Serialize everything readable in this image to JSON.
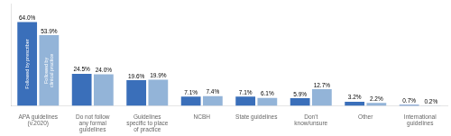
{
  "chart_data": {
    "type": "bar",
    "categories": [
      "APA guidelines\n(v.2020)",
      "Do not follow\nany formal\nguidelines",
      "Guidelines\nspecific to place\nof practice",
      "NCBH",
      "State guidelines",
      "Don't\nknow/unsure",
      "Other",
      "International\nguidelines"
    ],
    "series": [
      {
        "name": "Followed by prescriber",
        "color": "#3a6fba",
        "values": [
          64.0,
          24.5,
          19.6,
          7.1,
          7.1,
          5.9,
          3.2,
          0.7
        ],
        "value_labels": [
          "64.0%",
          "24.5%",
          "19.6%",
          "7.1%",
          "7.1%",
          "5.9%",
          "3.2%",
          "0.7%"
        ]
      },
      {
        "name": "Followed by\nclinical practice",
        "color": "#93b4d8",
        "values": [
          53.9,
          24.0,
          19.9,
          7.4,
          6.1,
          12.7,
          2.2,
          0.2
        ],
        "value_labels": [
          "53.9%",
          "24.0%",
          "19.9%",
          "7.4%",
          "6.1%",
          "12.7%",
          "2.2%",
          "0.2%"
        ]
      }
    ],
    "ylim": [
      0,
      78
    ],
    "grid": false,
    "data_labels": true,
    "tick_labels": "x"
  }
}
